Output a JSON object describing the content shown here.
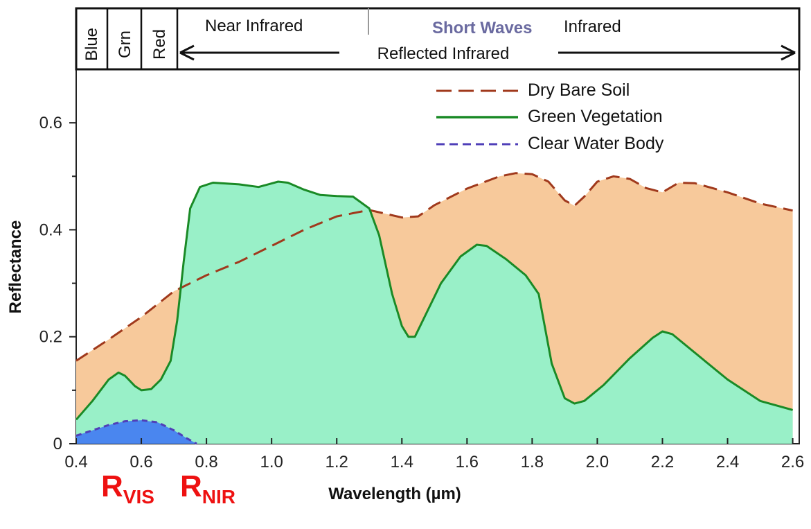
{
  "chart_data": {
    "type": "area",
    "xlabel": "Wavelength (µm)",
    "ylabel": "Reflectance",
    "xlim": [
      0.4,
      2.62
    ],
    "ylim": [
      0,
      0.7
    ],
    "x_ticks": [
      "0.4",
      "0.6",
      "0.8",
      "1.0",
      "1.2",
      "1.4",
      "1.6",
      "1.8",
      "2.0",
      "2.2",
      "2.4",
      "2.6"
    ],
    "y_ticks": [
      "0",
      "0.2",
      "0.4",
      "0.6"
    ],
    "grid": false,
    "legend_position": "top-right",
    "series": [
      {
        "name": "Dry Bare Soil",
        "line_color": "#a0391c",
        "fill_color": "#f7c99b",
        "dash": "dashed",
        "points": [
          [
            0.4,
            0.155
          ],
          [
            0.5,
            0.195
          ],
          [
            0.6,
            0.237
          ],
          [
            0.7,
            0.285
          ],
          [
            0.8,
            0.315
          ],
          [
            0.9,
            0.34
          ],
          [
            1.0,
            0.37
          ],
          [
            1.1,
            0.4
          ],
          [
            1.2,
            0.425
          ],
          [
            1.3,
            0.437
          ],
          [
            1.4,
            0.423
          ],
          [
            1.45,
            0.425
          ],
          [
            1.5,
            0.446
          ],
          [
            1.6,
            0.477
          ],
          [
            1.7,
            0.5
          ],
          [
            1.75,
            0.506
          ],
          [
            1.8,
            0.504
          ],
          [
            1.85,
            0.49
          ],
          [
            1.9,
            0.455
          ],
          [
            1.93,
            0.445
          ],
          [
            1.96,
            0.462
          ],
          [
            2.0,
            0.49
          ],
          [
            2.05,
            0.5
          ],
          [
            2.1,
            0.495
          ],
          [
            2.15,
            0.478
          ],
          [
            2.2,
            0.47
          ],
          [
            2.25,
            0.488
          ],
          [
            2.3,
            0.487
          ],
          [
            2.4,
            0.47
          ],
          [
            2.5,
            0.449
          ],
          [
            2.6,
            0.436
          ]
        ]
      },
      {
        "name": "Green Vegetation",
        "line_color": "#1a8a26",
        "fill_color": "#99f0c8",
        "dash": "solid",
        "points": [
          [
            0.4,
            0.045
          ],
          [
            0.45,
            0.08
          ],
          [
            0.5,
            0.12
          ],
          [
            0.53,
            0.133
          ],
          [
            0.55,
            0.127
          ],
          [
            0.58,
            0.108
          ],
          [
            0.6,
            0.1
          ],
          [
            0.63,
            0.102
          ],
          [
            0.66,
            0.12
          ],
          [
            0.69,
            0.155
          ],
          [
            0.71,
            0.23
          ],
          [
            0.73,
            0.34
          ],
          [
            0.75,
            0.44
          ],
          [
            0.78,
            0.48
          ],
          [
            0.82,
            0.488
          ],
          [
            0.9,
            0.485
          ],
          [
            0.96,
            0.48
          ],
          [
            1.02,
            0.49
          ],
          [
            1.05,
            0.488
          ],
          [
            1.1,
            0.475
          ],
          [
            1.15,
            0.465
          ],
          [
            1.2,
            0.463
          ],
          [
            1.25,
            0.462
          ],
          [
            1.3,
            0.44
          ],
          [
            1.33,
            0.39
          ],
          [
            1.37,
            0.28
          ],
          [
            1.4,
            0.22
          ],
          [
            1.42,
            0.2
          ],
          [
            1.44,
            0.2
          ],
          [
            1.48,
            0.25
          ],
          [
            1.52,
            0.3
          ],
          [
            1.58,
            0.35
          ],
          [
            1.63,
            0.372
          ],
          [
            1.66,
            0.37
          ],
          [
            1.72,
            0.345
          ],
          [
            1.78,
            0.315
          ],
          [
            1.82,
            0.28
          ],
          [
            1.86,
            0.15
          ],
          [
            1.9,
            0.085
          ],
          [
            1.93,
            0.075
          ],
          [
            1.96,
            0.08
          ],
          [
            2.02,
            0.11
          ],
          [
            2.1,
            0.16
          ],
          [
            2.17,
            0.198
          ],
          [
            2.2,
            0.21
          ],
          [
            2.23,
            0.205
          ],
          [
            2.3,
            0.17
          ],
          [
            2.4,
            0.12
          ],
          [
            2.5,
            0.08
          ],
          [
            2.6,
            0.063
          ]
        ]
      },
      {
        "name": "Clear Water Body",
        "line_color": "#4f3fb8",
        "fill_color": "#4a86ef",
        "dash": "dashed",
        "points": [
          [
            0.4,
            0.015
          ],
          [
            0.45,
            0.025
          ],
          [
            0.5,
            0.035
          ],
          [
            0.55,
            0.042
          ],
          [
            0.6,
            0.044
          ],
          [
            0.65,
            0.04
          ],
          [
            0.7,
            0.025
          ],
          [
            0.74,
            0.01
          ],
          [
            0.77,
            0.0
          ]
        ]
      }
    ],
    "band_header": {
      "bands": [
        "Blue",
        "Grn",
        "Red"
      ],
      "near_infrared": "Near Infrared",
      "short_waves": "Short Waves",
      "infrared": "Infrared",
      "reflected_infrared": "Reflected Infrared"
    },
    "annotations": {
      "r_vis": {
        "main": "R",
        "sub": "VIS",
        "color": "#ee1111"
      },
      "r_nir": {
        "main": "R",
        "sub": "NIR",
        "color": "#ee1111"
      }
    }
  }
}
